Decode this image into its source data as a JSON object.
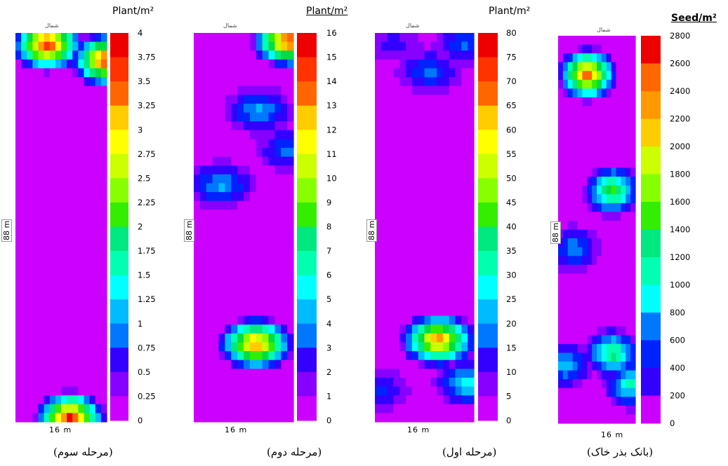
{
  "chart_data": [
    {
      "type": "heatmap",
      "caption": "(مرحله سوم)",
      "unit": "Plant/m²",
      "north_label": "شمال",
      "ylabel": "88 m",
      "xlabel": "16 m",
      "colorbar_ticks": [
        "4",
        "3.75",
        "3.5",
        "3.25",
        "3",
        "2.75",
        "2.5",
        "2.25",
        "2",
        "1.75",
        "1.5",
        "1.25",
        "1",
        "0.75",
        "0.5",
        "0.25",
        "0"
      ],
      "vmax": 4,
      "hotspots": [
        {
          "x": 0.35,
          "y": 0.03,
          "v": 4
        },
        {
          "x": 1.0,
          "y": 0.07,
          "v": 4
        },
        {
          "x": 0.6,
          "y": 0.99,
          "v": 4
        }
      ]
    },
    {
      "type": "heatmap",
      "caption": "(مرحله دوم)",
      "unit": "Plant/m²",
      "north_label": "شمال",
      "ylabel": "88 m",
      "xlabel": "16 m",
      "colorbar_ticks": [
        "16",
        "15",
        "14",
        "13",
        "12",
        "11",
        "10",
        "9",
        "8",
        "7",
        "6",
        "5",
        "4",
        "3",
        "2",
        "1",
        "0"
      ],
      "vmax": 16,
      "hotspots": [
        {
          "x": 0.97,
          "y": 0.02,
          "v": 16
        },
        {
          "x": 0.62,
          "y": 0.8,
          "v": 14
        },
        {
          "x": 0.27,
          "y": 0.39,
          "v": 5
        },
        {
          "x": 0.65,
          "y": 0.2,
          "v": 5
        },
        {
          "x": 0.95,
          "y": 0.3,
          "v": 4
        }
      ]
    },
    {
      "type": "heatmap",
      "caption": "(مرحله اول)",
      "unit": "Plant/m²",
      "north_label": "شمال",
      "ylabel": "88 m",
      "xlabel": "16 m",
      "colorbar_ticks": [
        "80",
        "75",
        "70",
        "65",
        "60",
        "55",
        "50",
        "45",
        "40",
        "35",
        "30",
        "25",
        "20",
        "15",
        "10",
        "5",
        "0"
      ],
      "vmax": 80,
      "hotspots": [
        {
          "x": 0.64,
          "y": 0.79,
          "v": 70
        },
        {
          "x": 0.55,
          "y": 0.1,
          "v": 20
        },
        {
          "x": 0.9,
          "y": 0.03,
          "v": 18
        },
        {
          "x": 0.2,
          "y": 0.03,
          "v": 12
        },
        {
          "x": 0.95,
          "y": 0.9,
          "v": 30
        },
        {
          "x": 0.05,
          "y": 0.92,
          "v": 15
        }
      ]
    },
    {
      "type": "heatmap",
      "caption": "(بانک بذر خاک)",
      "unit": "Seed/m²",
      "north_label": "شمال",
      "ylabel": "88 m",
      "xlabel": "16 m",
      "colorbar_ticks": [
        "2800",
        "2600",
        "2400",
        "2200",
        "2000",
        "1800",
        "1600",
        "1400",
        "1200",
        "1000",
        "800",
        "600",
        "400",
        "200",
        "0"
      ],
      "vmax": 2800,
      "hotspots": [
        {
          "x": 0.38,
          "y": 0.1,
          "v": 2600
        },
        {
          "x": 0.7,
          "y": 0.4,
          "v": 1600
        },
        {
          "x": 0.7,
          "y": 0.82,
          "v": 1400
        },
        {
          "x": 0.2,
          "y": 0.55,
          "v": 800
        },
        {
          "x": 0.95,
          "y": 0.9,
          "v": 1200
        },
        {
          "x": 0.1,
          "y": 0.85,
          "v": 900
        }
      ]
    }
  ],
  "palette": [
    "#cc00ff",
    "#8800ff",
    "#3300ff",
    "#0022ff",
    "#0077ff",
    "#00bbff",
    "#00ffff",
    "#00ffb0",
    "#00e880",
    "#00dd44",
    "#33ee00",
    "#88ff00",
    "#ccff00",
    "#ffff00",
    "#ffcc00",
    "#ff9900",
    "#ff6600",
    "#ff3300",
    "#ee0000"
  ]
}
